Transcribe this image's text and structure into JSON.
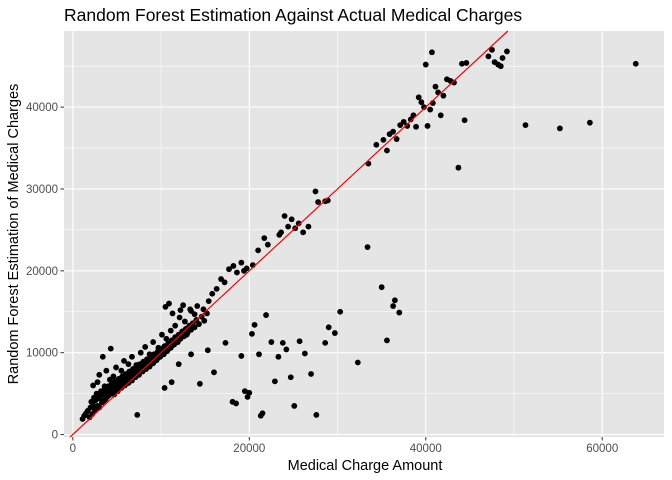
{
  "chart_data": {
    "type": "scatter",
    "title": "Random Forest Estimation Against Actual Medical Charges",
    "xlabel": "Medical Charge Amount",
    "ylabel": "Random Forest Estimation of Medical Charges",
    "xlim": [
      -1000,
      67000
    ],
    "ylim": [
      -300,
      49300
    ],
    "x_ticks": [
      0,
      20000,
      40000,
      60000
    ],
    "x_tick_labels": [
      "0",
      "20000",
      "40000",
      "60000"
    ],
    "y_ticks": [
      0,
      10000,
      20000,
      30000,
      40000
    ],
    "y_tick_labels": [
      "0",
      "10000",
      "20000",
      "30000",
      "40000"
    ],
    "grid": true,
    "colors": {
      "panel_background": "#e5e5e5",
      "grid": "#ffffff",
      "points": "#000000",
      "reference_line": "#ff0000"
    },
    "reference_line": {
      "type": "y=x"
    },
    "points": [
      [
        1100,
        1900
      ],
      [
        1300,
        2300
      ],
      [
        1500,
        2600
      ],
      [
        1700,
        2900
      ],
      [
        1900,
        2100
      ],
      [
        2000,
        3300
      ],
      [
        2100,
        4000
      ],
      [
        2200,
        2500
      ],
      [
        2300,
        3600
      ],
      [
        2400,
        4500
      ],
      [
        2500,
        3000
      ],
      [
        2600,
        4200
      ],
      [
        2700,
        5000
      ],
      [
        2800,
        3500
      ],
      [
        2900,
        4700
      ],
      [
        3000,
        3300
      ],
      [
        3100,
        4400
      ],
      [
        3200,
        5300
      ],
      [
        3300,
        3900
      ],
      [
        3400,
        4900
      ],
      [
        3500,
        4100
      ],
      [
        3600,
        5500
      ],
      [
        3700,
        4300
      ],
      [
        3800,
        5100
      ],
      [
        3900,
        4600
      ],
      [
        4000,
        5900
      ],
      [
        4100,
        4800
      ],
      [
        4200,
        5600
      ],
      [
        4300,
        5000
      ],
      [
        4400,
        6200
      ],
      [
        4500,
        5200
      ],
      [
        4600,
        5900
      ],
      [
        4700,
        4900
      ],
      [
        4800,
        6500
      ],
      [
        4900,
        5600
      ],
      [
        5000,
        6100
      ],
      [
        5100,
        5300
      ],
      [
        5200,
        6800
      ],
      [
        5300,
        5900
      ],
      [
        5400,
        6400
      ],
      [
        5500,
        5700
      ],
      [
        5600,
        7100
      ],
      [
        5700,
        6200
      ],
      [
        5800,
        6700
      ],
      [
        5900,
        6000
      ],
      [
        6000,
        7400
      ],
      [
        6100,
        6500
      ],
      [
        6200,
        7000
      ],
      [
        6300,
        6300
      ],
      [
        6400,
        7700
      ],
      [
        6500,
        6900
      ],
      [
        6600,
        7300
      ],
      [
        6700,
        6600
      ],
      [
        6800,
        8000
      ],
      [
        6900,
        7200
      ],
      [
        7000,
        7700
      ],
      [
        7100,
        7000
      ],
      [
        7200,
        8300
      ],
      [
        7300,
        7500
      ],
      [
        7400,
        8000
      ],
      [
        7500,
        7300
      ],
      [
        7600,
        8600
      ],
      [
        7700,
        7800
      ],
      [
        7800,
        8300
      ],
      [
        7900,
        7700
      ],
      [
        8000,
        8900
      ],
      [
        8100,
        8100
      ],
      [
        8200,
        8700
      ],
      [
        8300,
        8000
      ],
      [
        8400,
        9200
      ],
      [
        8500,
        8400
      ],
      [
        8600,
        9000
      ],
      [
        8700,
        8300
      ],
      [
        8800,
        9500
      ],
      [
        8900,
        8700
      ],
      [
        9000,
        9300
      ],
      [
        9100,
        8700
      ],
      [
        9200,
        9800
      ],
      [
        9300,
        9000
      ],
      [
        9400,
        9700
      ],
      [
        9500,
        9100
      ],
      [
        9600,
        10100
      ],
      [
        9700,
        9400
      ],
      [
        9800,
        10000
      ],
      [
        9900,
        9500
      ],
      [
        10000,
        10500
      ],
      [
        10100,
        9800
      ],
      [
        10200,
        10400
      ],
      [
        10300,
        9800
      ],
      [
        10400,
        10800
      ],
      [
        10500,
        10100
      ],
      [
        10600,
        10700
      ],
      [
        10700,
        10200
      ],
      [
        10800,
        11100
      ],
      [
        10900,
        10500
      ],
      [
        11000,
        11100
      ],
      [
        11100,
        10600
      ],
      [
        11200,
        11500
      ],
      [
        11300,
        10900
      ],
      [
        11400,
        11500
      ],
      [
        11500,
        11000
      ],
      [
        11600,
        11900
      ],
      [
        11700,
        11300
      ],
      [
        11800,
        11800
      ],
      [
        11900,
        11300
      ],
      [
        12000,
        12200
      ],
      [
        12200,
        11700
      ],
      [
        12400,
        12600
      ],
      [
        12600,
        12000
      ],
      [
        12800,
        12900
      ],
      [
        13000,
        12400
      ],
      [
        13200,
        13300
      ],
      [
        13400,
        12800
      ],
      [
        13600,
        13600
      ],
      [
        13800,
        13100
      ],
      [
        14000,
        14000
      ],
      [
        14300,
        13500
      ],
      [
        14600,
        14400
      ],
      [
        14900,
        13900
      ],
      [
        15200,
        14800
      ],
      [
        2300,
        6000
      ],
      [
        2800,
        6400
      ],
      [
        3000,
        7300
      ],
      [
        3600,
        5900
      ],
      [
        3800,
        7800
      ],
      [
        4200,
        6700
      ],
      [
        4600,
        7100
      ],
      [
        4900,
        8200
      ],
      [
        5500,
        7800
      ],
      [
        5800,
        9000
      ],
      [
        6300,
        8600
      ],
      [
        6700,
        9500
      ],
      [
        7200,
        8500
      ],
      [
        7700,
        10000
      ],
      [
        8200,
        10700
      ],
      [
        8700,
        9800
      ],
      [
        9100,
        11300
      ],
      [
        9700,
        10600
      ],
      [
        10100,
        12200
      ],
      [
        10600,
        11700
      ],
      [
        11100,
        12700
      ],
      [
        11600,
        13300
      ],
      [
        12100,
        14300
      ],
      [
        12700,
        13800
      ],
      [
        13300,
        15300
      ],
      [
        13800,
        14700
      ],
      [
        10500,
        15600
      ],
      [
        10900,
        16000
      ],
      [
        11300,
        14800
      ],
      [
        12200,
        15200
      ],
      [
        12500,
        15800
      ],
      [
        13400,
        15100
      ],
      [
        14100,
        15700
      ],
      [
        14800,
        15300
      ],
      [
        15400,
        16300
      ],
      [
        15800,
        17200
      ],
      [
        16300,
        17800
      ],
      [
        16800,
        19000
      ],
      [
        17200,
        18600
      ],
      [
        17700,
        20200
      ],
      [
        18200,
        20600
      ],
      [
        18600,
        19800
      ],
      [
        19100,
        21000
      ],
      [
        19700,
        20300
      ],
      [
        20400,
        20700
      ],
      [
        21000,
        22500
      ],
      [
        21700,
        24000
      ],
      [
        22100,
        23200
      ],
      [
        23600,
        24700
      ],
      [
        24000,
        26700
      ],
      [
        24400,
        25400
      ],
      [
        24800,
        26300
      ],
      [
        25200,
        25200
      ],
      [
        25600,
        25800
      ],
      [
        26100,
        24700
      ],
      [
        26700,
        25400
      ],
      [
        27500,
        29700
      ],
      [
        27800,
        28400
      ],
      [
        28600,
        28500
      ],
      [
        28900,
        28600
      ],
      [
        23400,
        24400
      ],
      [
        19400,
        20000
      ],
      [
        4300,
        10500
      ],
      [
        3400,
        9500
      ],
      [
        7300,
        2400
      ],
      [
        10400,
        5700
      ],
      [
        11200,
        6400
      ],
      [
        12000,
        8600
      ],
      [
        12900,
        12200
      ],
      [
        13400,
        9800
      ],
      [
        14400,
        6200
      ],
      [
        15300,
        10300
      ],
      [
        16000,
        7600
      ],
      [
        17300,
        11200
      ],
      [
        18100,
        4000
      ],
      [
        18500,
        3800
      ],
      [
        19100,
        9600
      ],
      [
        19500,
        5300
      ],
      [
        19800,
        4600
      ],
      [
        20000,
        5100
      ],
      [
        20300,
        12300
      ],
      [
        20600,
        13400
      ],
      [
        21100,
        9800
      ],
      [
        21300,
        2300
      ],
      [
        21500,
        2600
      ],
      [
        21900,
        14600
      ],
      [
        22500,
        11300
      ],
      [
        22900,
        6500
      ],
      [
        23300,
        9500
      ],
      [
        23800,
        11200
      ],
      [
        24200,
        10400
      ],
      [
        24700,
        7000
      ],
      [
        25100,
        3500
      ],
      [
        25700,
        11400
      ],
      [
        26300,
        9900
      ],
      [
        27000,
        7400
      ],
      [
        27600,
        2400
      ],
      [
        28600,
        11200
      ],
      [
        29000,
        13100
      ],
      [
        29700,
        12400
      ],
      [
        30300,
        15000
      ],
      [
        32300,
        8800
      ],
      [
        33400,
        22900
      ],
      [
        35000,
        18000
      ],
      [
        35600,
        11500
      ],
      [
        36300,
        15700
      ],
      [
        37000,
        14900
      ],
      [
        36500,
        16400
      ],
      [
        33500,
        33100
      ],
      [
        34400,
        35400
      ],
      [
        35200,
        36000
      ],
      [
        35600,
        34700
      ],
      [
        35900,
        36700
      ],
      [
        36300,
        37000
      ],
      [
        36700,
        36100
      ],
      [
        37100,
        37800
      ],
      [
        37500,
        38200
      ],
      [
        37900,
        37700
      ],
      [
        38300,
        38500
      ],
      [
        38600,
        39000
      ],
      [
        38900,
        37600
      ],
      [
        39200,
        41200
      ],
      [
        39500,
        40600
      ],
      [
        39800,
        40000
      ],
      [
        40200,
        37700
      ],
      [
        40500,
        39700
      ],
      [
        40800,
        40500
      ],
      [
        41100,
        42500
      ],
      [
        41400,
        41800
      ],
      [
        41700,
        39000
      ],
      [
        42000,
        41400
      ],
      [
        42400,
        43400
      ],
      [
        42800,
        43200
      ],
      [
        43200,
        43000
      ],
      [
        43700,
        32600
      ],
      [
        44100,
        45300
      ],
      [
        44400,
        38400
      ],
      [
        40000,
        45200
      ],
      [
        40700,
        46700
      ],
      [
        47100,
        46200
      ],
      [
        47500,
        47000
      ],
      [
        47800,
        45500
      ],
      [
        48200,
        45200
      ],
      [
        48500,
        45000
      ],
      [
        48700,
        46000
      ],
      [
        49200,
        46800
      ],
      [
        44600,
        45400
      ],
      [
        51300,
        37800
      ],
      [
        55200,
        37400
      ],
      [
        58600,
        38100
      ],
      [
        63800,
        45300
      ]
    ]
  }
}
